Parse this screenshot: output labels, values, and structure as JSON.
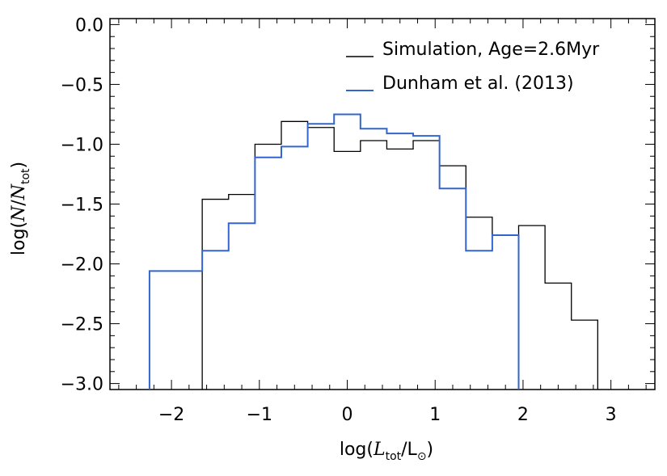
{
  "chart_data": {
    "type": "histogram-step",
    "xlabel": "log(L_tot/L_⊙)",
    "ylabel": "log(N/N_tot)",
    "xlim": [
      -2.7,
      3.5
    ],
    "ylim": [
      -3.05,
      0.05
    ],
    "xticks": [
      -2,
      -1,
      0,
      1,
      2,
      3
    ],
    "xtick_labels": [
      "−2",
      "−1",
      "0",
      "1",
      "2",
      "3"
    ],
    "yticks": [
      0.0,
      -0.5,
      -1.0,
      -1.5,
      -2.0,
      -2.5,
      -3.0
    ],
    "ytick_labels": [
      "0.0",
      "−0.5",
      "−1.0",
      "−1.5",
      "−2.0",
      "−2.5",
      "−3.0"
    ],
    "grid": false,
    "legend_position": "top-right",
    "series": [
      {
        "name": "Simulation, Age=2.6Myr",
        "color": "#000000",
        "bin_edges": [
          -1.65,
          -1.35,
          -1.05,
          -0.75,
          -0.45,
          -0.15,
          0.15,
          0.45,
          0.75,
          1.05,
          1.35,
          1.65,
          1.95,
          2.25,
          2.55,
          2.85
        ],
        "values": [
          -1.46,
          -1.42,
          -1.0,
          -0.81,
          -0.86,
          -1.06,
          -0.97,
          -1.04,
          -0.97,
          -1.18,
          -1.61,
          -1.76,
          -1.68,
          -2.16,
          -2.47
        ]
      },
      {
        "name": "Dunham et al. (2013)",
        "color": "#3366cc",
        "bin_edges": [
          -2.25,
          -1.65,
          -1.35,
          -1.05,
          -0.75,
          -0.45,
          -0.15,
          0.15,
          0.45,
          0.75,
          1.05,
          1.35,
          1.65,
          1.95
        ],
        "values": [
          -2.06,
          -1.89,
          -1.66,
          -1.11,
          -1.02,
          -0.83,
          -0.75,
          -0.87,
          -0.91,
          -0.93,
          -1.37,
          -1.89,
          -1.76
        ]
      }
    ]
  },
  "labels": {
    "xlabel_pre": "log(",
    "xlabel_L": "L",
    "xlabel_sub": "tot",
    "xlabel_mid": "/L",
    "xlabel_sun": "⊙",
    "xlabel_post": ")",
    "ylabel_pre": "log(",
    "ylabel_N": "N",
    "ylabel_mid": "/",
    "ylabel_N2": "N",
    "ylabel_sub": "tot",
    "ylabel_post": ")"
  }
}
